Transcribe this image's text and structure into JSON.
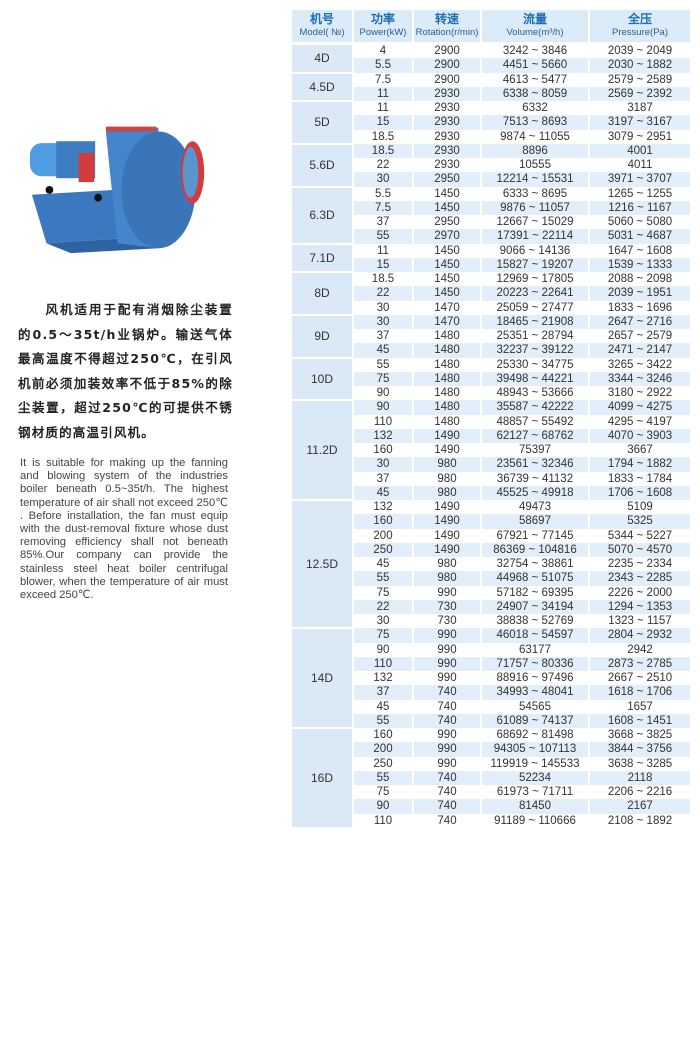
{
  "description": {
    "cn": "风机适用于配有消烟除尘装置的0.5～35t/h业锅炉。输送气体最高温度不得超过250℃，在引风机前必须加装效率不低于85%的除尘装置，超过250℃的可提供不锈钢材质的高温引风机。",
    "en": "It is suitable for making up the fanning and blowing system of the industries boiler beneath 0.5~35t/h. The highest temperature of air shall not exceed 250℃ . Before installation, the fan must equip with the dust-removal fixture whose dust removing efficiency shall not beneath 85%.Our company can provide the stainless steel heat boiler centrifugal blower, when the temperature of air must exceed 250℃."
  },
  "colors": {
    "header_bg": "#dcebf8",
    "header_text": "#1f6db5",
    "stripe": "#e2eef9",
    "fan_body": "#3f7fc4",
    "fan_accent": "#d03a3a"
  },
  "table": {
    "headers": [
      {
        "cn": "机号",
        "en": "Model( №)"
      },
      {
        "cn": "功率",
        "en": "Power(kW)"
      },
      {
        "cn": "转速",
        "en": "Rotation(r/min)"
      },
      {
        "cn": "流量",
        "en": "Volume(m³/h)"
      },
      {
        "cn": "全压",
        "en": "Pressure(Pa)"
      }
    ],
    "groups": [
      {
        "model": "4D",
        "rows": [
          [
            "4",
            "2900",
            "3242 ~ 3846",
            "2039 ~ 2049"
          ],
          [
            "5.5",
            "2900",
            "4451 ~ 5660",
            "2030 ~ 1882"
          ]
        ]
      },
      {
        "model": "4.5D",
        "rows": [
          [
            "7.5",
            "2900",
            "4613 ~ 5477",
            "2579 ~ 2589"
          ],
          [
            "11",
            "2930",
            "6338 ~ 8059",
            "2569 ~ 2392"
          ]
        ]
      },
      {
        "model": "5D",
        "rows": [
          [
            "11",
            "2930",
            "6332",
            "3187"
          ],
          [
            "15",
            "2930",
            "7513 ~ 8693",
            "3197 ~ 3167"
          ],
          [
            "18.5",
            "2930",
            "9874 ~ 11055",
            "3079 ~ 2951"
          ]
        ]
      },
      {
        "model": "5.6D",
        "rows": [
          [
            "18.5",
            "2930",
            "8896",
            "4001"
          ],
          [
            "22",
            "2930",
            "10555",
            "4011"
          ],
          [
            "30",
            "2950",
            "12214 ~ 15531",
            "3971 ~ 3707"
          ]
        ]
      },
      {
        "model": "6.3D",
        "rows": [
          [
            "5.5",
            "1450",
            "6333 ~ 8695",
            "1265 ~ 1255"
          ],
          [
            "7.5",
            "1450",
            "9876 ~ 11057",
            "1216 ~ 1167"
          ],
          [
            "37",
            "2950",
            "12667 ~ 15029",
            "5060 ~ 5080"
          ],
          [
            "55",
            "2970",
            "17391 ~ 22114",
            "5031 ~ 4687"
          ]
        ]
      },
      {
        "model": "7.1D",
        "rows": [
          [
            "11",
            "1450",
            "9066 ~ 14136",
            "1647 ~ 1608"
          ],
          [
            "15",
            "1450",
            "15827 ~ 19207",
            "1539 ~ 1333"
          ]
        ]
      },
      {
        "model": "8D",
        "rows": [
          [
            "18.5",
            "1450",
            "12969 ~ 17805",
            "2088 ~ 2098"
          ],
          [
            "22",
            "1450",
            "20223 ~ 22641",
            "2039 ~ 1951"
          ],
          [
            "30",
            "1470",
            "25059 ~ 27477",
            "1833 ~ 1696"
          ]
        ]
      },
      {
        "model": "9D",
        "rows": [
          [
            "30",
            "1470",
            "18465 ~ 21908",
            "2647 ~ 2716"
          ],
          [
            "37",
            "1480",
            "25351 ~ 28794",
            "2657 ~ 2579"
          ],
          [
            "45",
            "1480",
            "32237 ~ 39122",
            "2471 ~ 2147"
          ]
        ]
      },
      {
        "model": "10D",
        "rows": [
          [
            "55",
            "1480",
            "25330 ~ 34775",
            "3265 ~ 3422"
          ],
          [
            "75",
            "1480",
            "39498 ~ 44221",
            "3344 ~ 3246"
          ],
          [
            "90",
            "1480",
            "48943 ~ 53666",
            "3180 ~ 2922"
          ]
        ]
      },
      {
        "model": "11.2D",
        "rows": [
          [
            "90",
            "1480",
            "35587 ~ 42222",
            "4099 ~ 4275"
          ],
          [
            "110",
            "1480",
            "48857 ~ 55492",
            "4295 ~ 4197"
          ],
          [
            "132",
            "1490",
            "62127 ~ 68762",
            "4070 ~ 3903"
          ],
          [
            "160",
            "1490",
            "75397",
            "3667"
          ],
          [
            "30",
            "980",
            "23561 ~ 32346",
            "1794 ~ 1882"
          ],
          [
            "37",
            "980",
            "36739 ~ 41132",
            "1833 ~ 1784"
          ],
          [
            "45",
            "980",
            "45525 ~ 49918",
            "1706 ~ 1608"
          ]
        ]
      },
      {
        "model": "12.5D",
        "rows": [
          [
            "132",
            "1490",
            "49473",
            "5109"
          ],
          [
            "160",
            "1490",
            "58697",
            "5325"
          ],
          [
            "200",
            "1490",
            "67921 ~ 77145",
            "5344 ~ 5227"
          ],
          [
            "250",
            "1490",
            "86369 ~ 104816",
            "5070 ~ 4570"
          ],
          [
            "45",
            "980",
            "32754 ~ 38861",
            "2235 ~ 2334"
          ],
          [
            "55",
            "980",
            "44968 ~ 51075",
            "2343 ~ 2285"
          ],
          [
            "75",
            "990",
            "57182 ~ 69395",
            "2226 ~ 2000"
          ],
          [
            "22",
            "730",
            "24907 ~ 34194",
            "1294 ~ 1353"
          ],
          [
            "30",
            "730",
            "38838 ~ 52769",
            "1323 ~ 1157"
          ]
        ]
      },
      {
        "model": "14D",
        "rows": [
          [
            "75",
            "990",
            "46018 ~ 54597",
            "2804 ~ 2932"
          ],
          [
            "90",
            "990",
            "63177",
            "2942"
          ],
          [
            "110",
            "990",
            "71757 ~ 80336",
            "2873 ~ 2785"
          ],
          [
            "132",
            "990",
            "88916 ~ 97496",
            "2667 ~ 2510"
          ],
          [
            "37",
            "740",
            "34993 ~ 48041",
            "1618 ~ 1706"
          ],
          [
            "45",
            "740",
            "54565",
            "1657"
          ],
          [
            "55",
            "740",
            "61089 ~ 74137",
            "1608 ~ 1451"
          ]
        ]
      },
      {
        "model": "16D",
        "rows": [
          [
            "160",
            "990",
            "68692 ~ 81498",
            "3668 ~ 3825"
          ],
          [
            "200",
            "990",
            "94305 ~ 107113",
            "3844 ~ 3756"
          ],
          [
            "250",
            "990",
            "119919 ~ 145533",
            "3638 ~ 3285"
          ],
          [
            "55",
            "740",
            "52234",
            "2118"
          ],
          [
            "75",
            "740",
            "61973 ~ 71711",
            "2206 ~ 2216"
          ],
          [
            "90",
            "740",
            "81450",
            "2167"
          ],
          [
            "110",
            "740",
            "91189 ~ 110666",
            "2108 ~ 1892"
          ]
        ]
      }
    ]
  }
}
